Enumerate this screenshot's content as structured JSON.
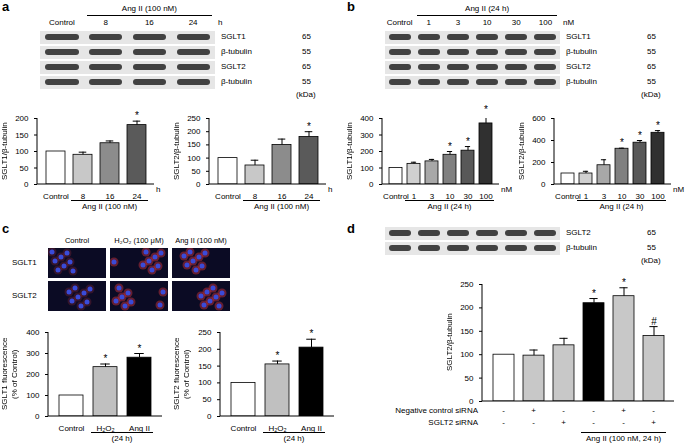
{
  "panels": [
    {
      "label": "a",
      "blot": {
        "group_label": "Ang II (100 nM)",
        "columns": [
          "Control",
          "8",
          "16",
          "24"
        ],
        "group_members": [
          false,
          true,
          true,
          true
        ],
        "unit": "h",
        "rows": [
          {
            "label": "SGLT1",
            "kda": 65
          },
          {
            "label": "β-tubulin",
            "kda": 55
          },
          {
            "label": "SGLT2",
            "kda": 65
          },
          {
            "label": "β-tubulin",
            "kda": 55
          }
        ],
        "kda_unit": "(kDa)"
      }
    },
    {
      "label": "b",
      "blot": {
        "group_label": "Ang II (24 h)",
        "columns": [
          "Control",
          "1",
          "3",
          "10",
          "30",
          "100"
        ],
        "group_members": [
          false,
          true,
          true,
          true,
          true,
          true
        ],
        "unit": "nM",
        "rows": [
          {
            "label": "SGLT1",
            "kda": 65
          },
          {
            "label": "β-tubulin",
            "kda": 55
          },
          {
            "label": "SGLT2",
            "kda": 65
          },
          {
            "label": "β-tubulin",
            "kda": 55
          }
        ],
        "kda_unit": "(kDa)"
      }
    },
    {
      "label": "c",
      "micrographs": {
        "columns": [
          "Control",
          "H₂O₂ (100 μM)",
          "Ang II (100 nM)"
        ],
        "rows": [
          "SGLT1",
          "SGLT2"
        ]
      }
    },
    {
      "label": "d",
      "blot": {
        "group_label": null,
        "columns": [
          null,
          null,
          null,
          null,
          null,
          null
        ],
        "group_members": null,
        "unit": null,
        "rows": [
          {
            "label": "SGLT2",
            "kda": 65
          },
          {
            "label": "β-tubulin",
            "kda": 55
          }
        ],
        "kda_unit": "(kDa)"
      }
    }
  ],
  "chart_data": [
    {
      "type": "bar",
      "panel": "a",
      "ylabel": "SGLT1/β-tubulin",
      "categories": [
        "Control",
        "8",
        "16",
        "24"
      ],
      "x_unit": "h",
      "values": [
        100,
        90,
        125,
        180
      ],
      "errors": [
        0,
        8,
        7,
        12
      ],
      "annotations": [
        null,
        null,
        null,
        "*"
      ],
      "colors": [
        "#ffffff",
        "#c8c8c8",
        "#8c8c8c",
        "#5a5a5a"
      ],
      "ylim": [
        0,
        200
      ],
      "yticks": [
        0,
        50,
        100,
        150,
        200
      ],
      "group": {
        "label": "Ang II (100 nM)",
        "members": [
          false,
          true,
          true,
          true
        ]
      }
    },
    {
      "type": "bar",
      "panel": "a",
      "ylabel": "SGLT2/β-tubulin",
      "categories": [
        "Control",
        "8",
        "16",
        "24"
      ],
      "x_unit": "h",
      "values": [
        100,
        72,
        150,
        180
      ],
      "errors": [
        0,
        20,
        22,
        20
      ],
      "annotations": [
        null,
        null,
        null,
        "*"
      ],
      "colors": [
        "#ffffff",
        "#c8c8c8",
        "#8c8c8c",
        "#5a5a5a"
      ],
      "ylim": [
        0,
        250
      ],
      "yticks": [
        0,
        50,
        100,
        150,
        200,
        250
      ],
      "group": {
        "label": "Ang II (100 nM)",
        "members": [
          false,
          true,
          true,
          true
        ]
      }
    },
    {
      "type": "bar",
      "panel": "b",
      "ylabel": "SGLT1/β-tubulin",
      "categories": [
        "Control",
        "1",
        "3",
        "10",
        "30",
        "100"
      ],
      "x_unit": "nM",
      "values": [
        100,
        125,
        140,
        180,
        205,
        370
      ],
      "errors": [
        0,
        10,
        12,
        20,
        25,
        55
      ],
      "annotations": [
        null,
        null,
        null,
        "*",
        "*",
        "*"
      ],
      "colors": [
        "#ffffff",
        "#d0d0d0",
        "#a8a8a8",
        "#808080",
        "#585858",
        "#303030"
      ],
      "ylim": [
        0,
        400
      ],
      "yticks": [
        0,
        100,
        200,
        300,
        400
      ],
      "group": {
        "label": "Ang II (24 h)",
        "members": [
          false,
          true,
          true,
          true,
          true,
          true
        ]
      }
    },
    {
      "type": "bar",
      "panel": "b",
      "ylabel": "SGLT2/β-tubulin",
      "categories": [
        "Control",
        "1",
        "3",
        "10",
        "30",
        "100"
      ],
      "x_unit": "nM",
      "values": [
        100,
        100,
        175,
        325,
        380,
        470
      ],
      "errors": [
        0,
        20,
        50,
        5,
        20,
        20
      ],
      "annotations": [
        null,
        null,
        null,
        "*",
        "*",
        "*"
      ],
      "colors": [
        "#ffffff",
        "#d0d0d0",
        "#a8a8a8",
        "#808080",
        "#585858",
        "#303030"
      ],
      "ylim": [
        0,
        600
      ],
      "yticks": [
        0,
        200,
        400,
        600
      ],
      "group": {
        "label": "Ang II (24 h)",
        "members": [
          false,
          true,
          true,
          true,
          true,
          true
        ]
      }
    },
    {
      "type": "bar",
      "panel": "c",
      "ylabel": "SGLT1 fluorescence (% of Control)",
      "categories": [
        "Control",
        "H₂O₂",
        "Ang II"
      ],
      "x_unit": null,
      "values": [
        100,
        235,
        280
      ],
      "errors": [
        0,
        15,
        20
      ],
      "annotations": [
        null,
        "*",
        "*"
      ],
      "colors": [
        "#ffffff",
        "#c0c0c0",
        "#000000"
      ],
      "ylim": [
        0,
        400
      ],
      "yticks": [
        0,
        100,
        200,
        300,
        400
      ],
      "group": {
        "label": "(24 h)",
        "members": [
          false,
          true,
          true
        ]
      }
    },
    {
      "type": "bar",
      "panel": "c",
      "ylabel": "SGLT2 fluorescence (% of Control)",
      "categories": [
        "Control",
        "H₂O₂",
        "Ang II"
      ],
      "x_unit": null,
      "values": [
        100,
        155,
        205
      ],
      "errors": [
        0,
        10,
        25
      ],
      "annotations": [
        null,
        "*",
        "*"
      ],
      "colors": [
        "#ffffff",
        "#c0c0c0",
        "#000000"
      ],
      "ylim": [
        0,
        250
      ],
      "yticks": [
        0,
        50,
        100,
        150,
        200,
        250
      ],
      "group": {
        "label": "(24 h)",
        "members": [
          false,
          true,
          true
        ]
      }
    },
    {
      "type": "bar",
      "panel": "d",
      "ylabel": "SGLT2/β-tubulin",
      "categories": [
        null,
        null,
        null,
        null,
        null,
        null
      ],
      "x_unit": null,
      "values": [
        100,
        98,
        120,
        210,
        225,
        140
      ],
      "errors": [
        0,
        12,
        15,
        10,
        18,
        20
      ],
      "annotations": [
        null,
        null,
        null,
        "*",
        "*",
        "#"
      ],
      "colors": [
        "#ffffff",
        "#c8c8c8",
        "#c8c8c8",
        "#000000",
        "#c8c8c8",
        "#c8c8c8"
      ],
      "ylim": [
        0,
        250
      ],
      "yticks": [
        0,
        50,
        100,
        150,
        200,
        250
      ],
      "table": {
        "rows": [
          {
            "label": "Negative control siRNA",
            "cells": [
              "-",
              "+",
              "-",
              "-",
              "+",
              "-"
            ]
          },
          {
            "label": "SGLT2 siRNA",
            "cells": [
              "-",
              "-",
              "+",
              "-",
              "-",
              "+"
            ]
          }
        ]
      },
      "group": {
        "label": "Ang II (100 nM, 24 h)",
        "members": [
          false,
          false,
          false,
          true,
          true,
          true
        ]
      }
    }
  ]
}
